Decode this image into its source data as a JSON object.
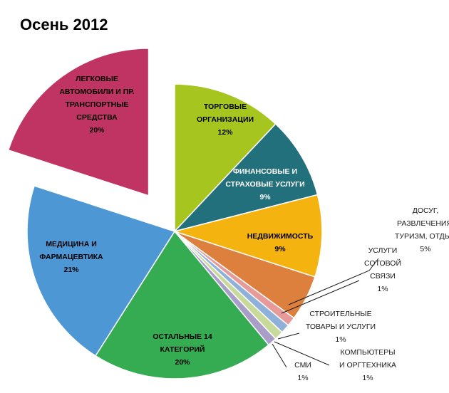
{
  "chart_data": {
    "type": "pie",
    "title": "Осень 2012",
    "slices": [
      {
        "label": [
          "ТОРГОВЫЕ",
          "ОРГАНИЗАЦИИ",
          "12%"
        ],
        "value": 12,
        "color": "#a6c51f"
      },
      {
        "label": [
          "ФИНАНСОВЫЕ  И",
          "СТРАХОВЫЕ УСЛУГИ",
          "9%"
        ],
        "value": 9,
        "color": "#23707d"
      },
      {
        "label": [
          "НЕДВИЖИМОСТЬ",
          "9%"
        ],
        "value": 9,
        "color": "#f5b30f"
      },
      {
        "label": [
          "ДОСУГ,",
          "РАЗВЛЕЧЕНИЯ,",
          "ТУРИЗМ,  ОТДЫХ",
          "5%"
        ],
        "value": 5,
        "color": "#dd7f3d"
      },
      {
        "label": [
          "УСЛУГИ",
          "СОТОВОЙ",
          "СВЯЗИ",
          "1%"
        ],
        "value": 1,
        "color": "#e79a9a"
      },
      {
        "label": [
          "СТРОИТЕЛЬНЫЕ",
          "ТОВАРЫ И УСЛУГИ",
          "1%"
        ],
        "value": 1,
        "color": "#8fb0d9"
      },
      {
        "label": [
          "КОМПЬЮТЕРЫ",
          "И ОРГТЕХНИКА",
          "1%"
        ],
        "value": 1,
        "color": "#c8da9a"
      },
      {
        "label": [
          "СМИ",
          "1%"
        ],
        "value": 1,
        "color": "#a99ec7"
      },
      {
        "label": [
          "ОСТАЛЬНЫЕ 14",
          "КАТЕГОРИЙ",
          "20%"
        ],
        "value": 20,
        "color": "#36ac52"
      },
      {
        "label": [
          "МЕДИЦИНА  И",
          "ФАРМАЦЕВТИКА",
          "21%"
        ],
        "value": 21,
        "color": "#4d97d4"
      },
      {
        "label": [
          "ЛЕГКОВЫЕ",
          "АВТОМОБИЛИ  И ПР.",
          "ТРАНСПОРТНЫЕ",
          "СРЕДСТВА",
          "20%"
        ],
        "value": 20,
        "color": "#c03463",
        "exploded": true
      }
    ],
    "legend": "none"
  }
}
